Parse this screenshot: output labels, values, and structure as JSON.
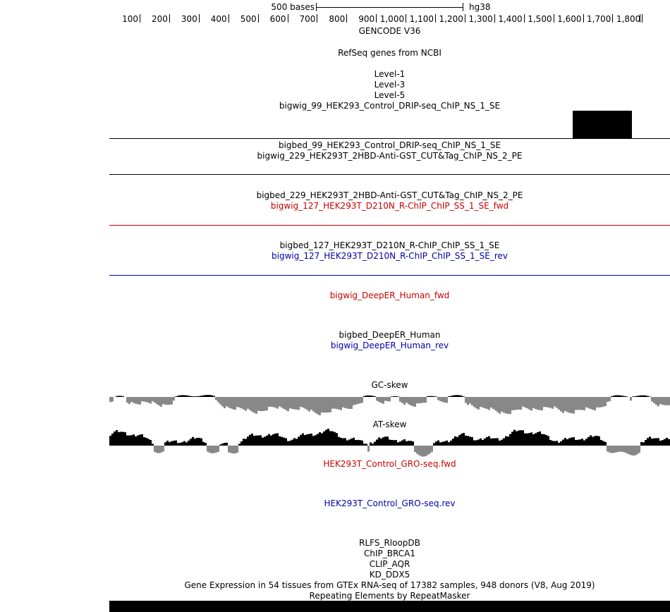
{
  "ruler": {
    "scale_label": "500 bases",
    "assembly": "hg38",
    "positions": [
      "100",
      "200",
      "300",
      "400",
      "500",
      "600",
      "700",
      "800",
      "900",
      "1,000",
      "1,100",
      "1,200",
      "1,300",
      "1,400",
      "1,500",
      "1,600",
      "1,700",
      "1,800"
    ]
  },
  "tracks": {
    "gencode": "GENCODE V36",
    "refseq": "RefSeq genes from NCBI",
    "level1": "Level-1",
    "level3": "Level-3",
    "level5": "Level-5",
    "drip_bigwig": "bigwig_99_HEK293_Control_DRIP-seq_ChIP_NS_1_SE",
    "drip_bigbed": "bigbed_99_HEK293_Control_DRIP-seq_ChIP_NS_1_SE",
    "cut_bigwig": "bigwig_229_HEK293T_2HBD-Anti-GST_CUT&Tag_ChIP_NS_2_PE",
    "cut_bigbed": "bigbed_229_HEK293T_2HBD-Anti-GST_CUT&Tag_ChIP_NS_2_PE",
    "rchip_fwd": "bigwig_127_HEK293T_D210N_R-ChIP_ChIP_SS_1_SE_fwd",
    "rchip_bigbed": "bigbed_127_HEK293T_D210N_R-ChIP_ChIP_SS_1_SE",
    "rchip_rev": "bigwig_127_HEK293T_D210N_R-ChIP_ChIP_SS_1_SE_rev",
    "deeper_fwd": "bigwig_DeepER_Human_fwd",
    "deeper_bigbed": "bigbed_DeepER_Human",
    "deeper_rev": "bigwig_DeepER_Human_rev",
    "gc_skew": "GC-skew",
    "at_skew": "AT-skew",
    "gro_fwd": "HEK293T_Control_GRO-seq.fwd",
    "gro_rev": "HEK293T_Control_GRO-seq.rev",
    "rlfs": "RLFS_RloopDB",
    "chip_brca1": "ChIP_BRCA1",
    "clip_aqr": "CLIP_AQR",
    "kd_ddx5": "KD_DDX5",
    "gtex": "Gene Expression in 54 tissues from GTEx RNA-seq of 17382 samples, 948 donors (V8, Aug 2019)",
    "repeatmasker": "Repeating Elements by RepeatMasker"
  },
  "colors": {
    "forward_strand": "#cc0000",
    "reverse_strand": "#0000aa",
    "skew_negative": "#888888",
    "skew_positive": "#000000"
  }
}
